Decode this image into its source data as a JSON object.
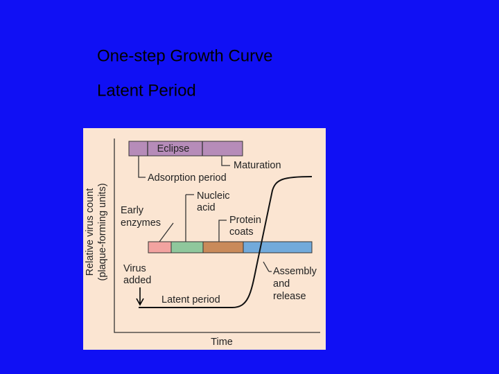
{
  "slide": {
    "title_lines": [
      "One-step Growth Curve",
      "Latent Period"
    ]
  },
  "figure": {
    "y_axis_label": [
      "Relative virus count",
      "(plaque-forming units)"
    ],
    "x_axis_label": "Time",
    "top_bar_label": "Eclipse",
    "labels": {
      "adsorption": "Adsorption period",
      "maturation": "Maturation",
      "nucleic_acid": [
        "Nucleic",
        "acid"
      ],
      "early_enzymes": [
        "Early",
        "enzymes"
      ],
      "protein_coats": [
        "Protein",
        "coats"
      ],
      "virus_added": [
        "Virus",
        "added"
      ],
      "latent_period": "Latent period",
      "assembly": [
        "Assembly",
        "and",
        "release"
      ]
    }
  }
}
